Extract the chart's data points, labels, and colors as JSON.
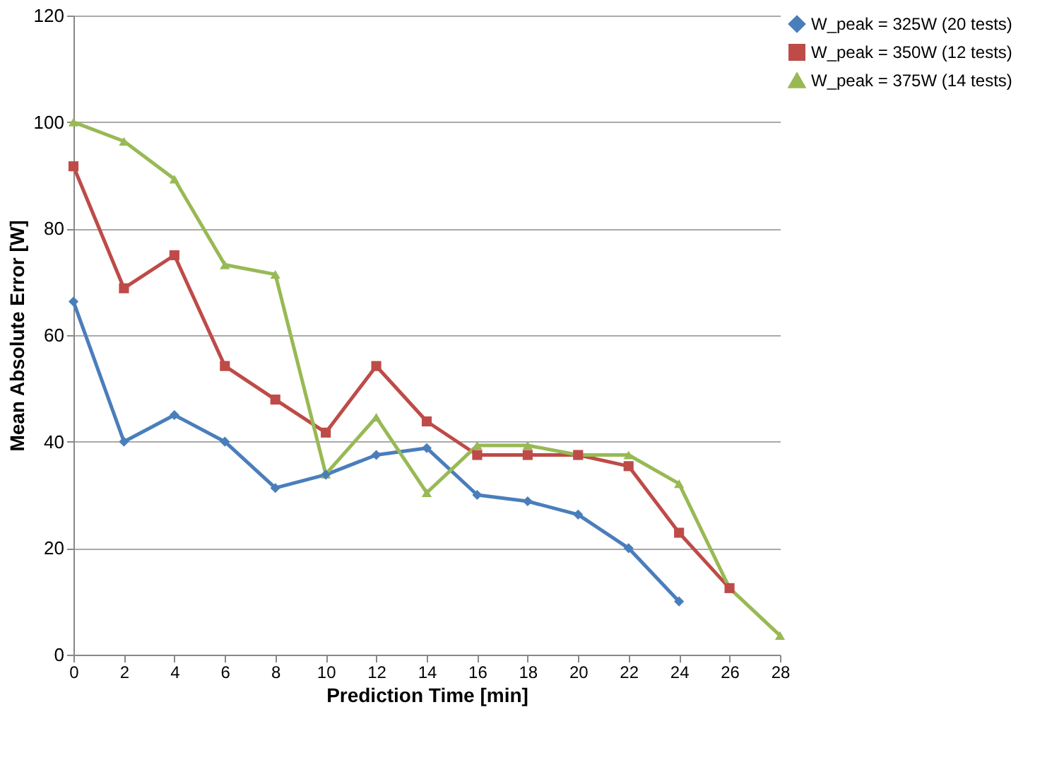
{
  "chart_data": {
    "type": "line",
    "xlabel": "Prediction Time [min]",
    "ylabel": "Mean Absolute Error [W]",
    "xlim": [
      0,
      28
    ],
    "xticks": [
      0,
      2,
      4,
      6,
      8,
      10,
      12,
      14,
      16,
      18,
      20,
      22,
      24,
      26,
      28
    ],
    "ylim": [
      0,
      120
    ],
    "yticks": [
      0,
      20,
      40,
      60,
      80,
      100,
      120
    ],
    "grid": "y",
    "legend": "right",
    "series": [
      {
        "name": "W_peak = 325W (20 tests)",
        "color": "#4a7ebb",
        "marker": "diamond",
        "x": [
          0,
          2,
          4,
          6,
          8,
          10,
          12,
          14,
          16,
          18,
          20,
          22,
          24
        ],
        "values": [
          66.3,
          40,
          45,
          40,
          31.3,
          33.8,
          37.5,
          38.8,
          30,
          28.8,
          26.3,
          20,
          10
        ]
      },
      {
        "name": "W_peak = 350W (12 tests)",
        "color": "#be4b48",
        "marker": "square",
        "x": [
          0,
          2,
          4,
          6,
          8,
          10,
          12,
          14,
          16,
          18,
          20,
          22,
          24,
          26
        ],
        "values": [
          91.7,
          68.8,
          75,
          54.2,
          47.9,
          41.7,
          54.2,
          43.8,
          37.5,
          37.5,
          37.5,
          35.4,
          22.9,
          12.5
        ]
      },
      {
        "name": "W_peak = 375W (14 tests)",
        "color": "#98b954",
        "marker": "triangle",
        "x": [
          0,
          2,
          4,
          6,
          8,
          10,
          12,
          14,
          16,
          18,
          20,
          22,
          24,
          26,
          28
        ],
        "values": [
          100,
          96.4,
          89.3,
          73.2,
          71.4,
          33.9,
          44.6,
          30.4,
          39.3,
          39.3,
          37.5,
          37.5,
          32.1,
          12.5,
          3.6
        ]
      }
    ]
  }
}
